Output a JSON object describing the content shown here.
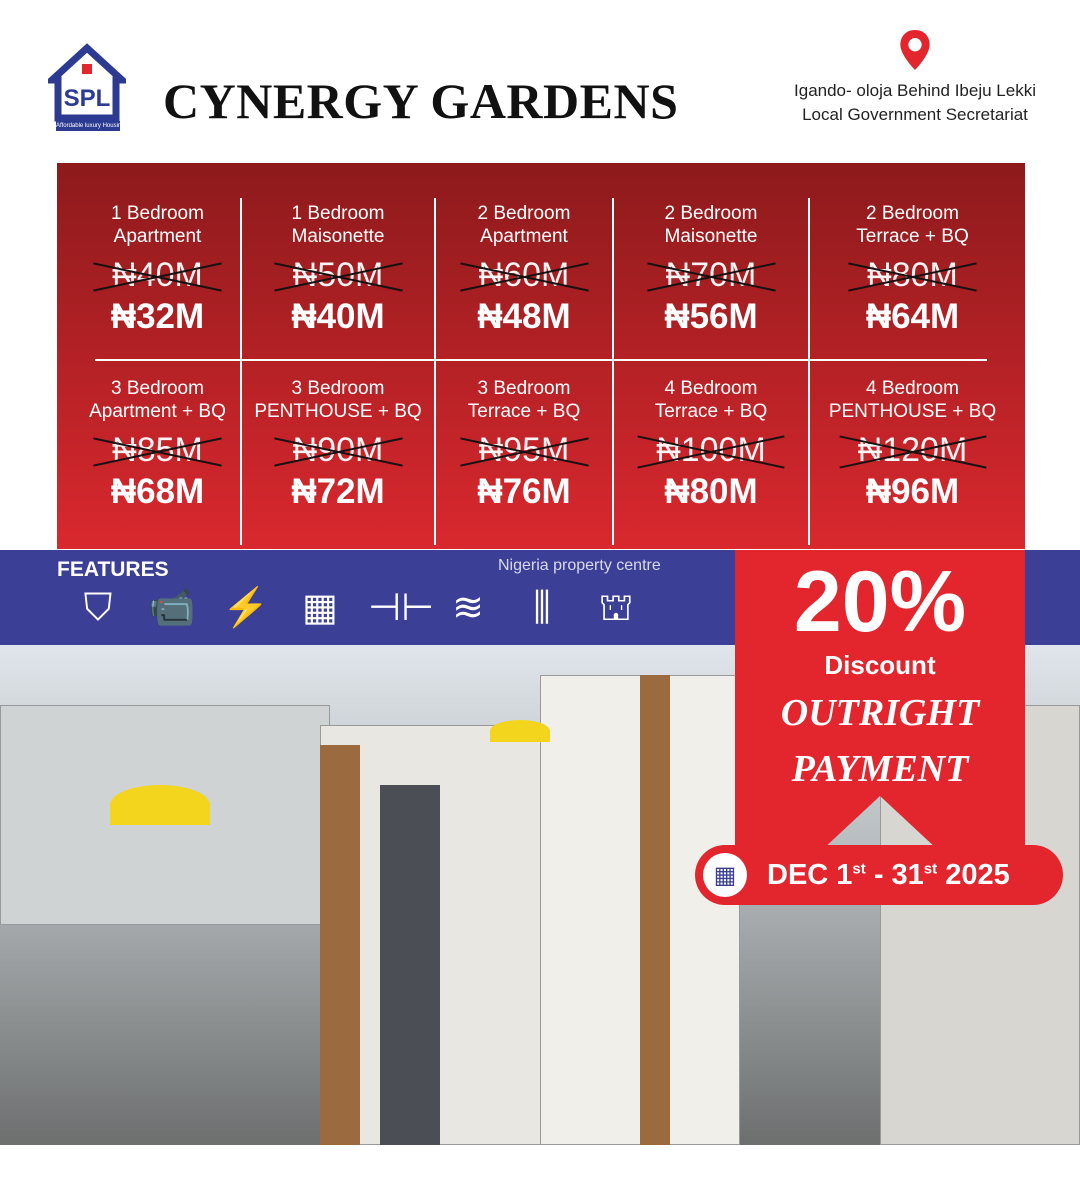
{
  "brand": {
    "logo_text": "SPL",
    "tagline": "Affordable luxury Housing!",
    "title": "CYNERGY GARDENS"
  },
  "location": {
    "icon": "map-pin-icon",
    "line1": "Igando- oloja Behind Ibeju Lekki",
    "line2": "Local Government Secretariat"
  },
  "units": [
    {
      "name1": "1 Bedroom",
      "name2": "Apartment",
      "old": "₦40M",
      "new": "₦32M"
    },
    {
      "name1": "1 Bedroom",
      "name2": "Maisonette",
      "old": "₦50M",
      "new": "₦40M"
    },
    {
      "name1": "2  Bedroom",
      "name2": "Apartment",
      "old": "₦60M",
      "new": "₦48M"
    },
    {
      "name1": "2 Bedroom",
      "name2": "Maisonette",
      "old": "₦70M",
      "new": "₦56M"
    },
    {
      "name1": "2 Bedroom",
      "name2": "Terrace + BQ",
      "old": "₦80M",
      "new": "₦64M"
    },
    {
      "name1": "3 Bedroom",
      "name2": "Apartment + BQ",
      "old": "₦85M",
      "new": "₦68M"
    },
    {
      "name1": "3 Bedroom",
      "name2": "PENTHOUSE + BQ",
      "old": "₦90M",
      "new": "₦72M"
    },
    {
      "name1": "3 Bedroom",
      "name2": "Terrace + BQ",
      "old": "₦95M",
      "new": "₦76M"
    },
    {
      "name1": "4 Bedroom",
      "name2": "Terrace + BQ",
      "old": "₦100M",
      "new": "₦80M"
    },
    {
      "name1": "4 Bedroom",
      "name2": "PENTHOUSE + BQ",
      "old": "₦120M",
      "new": "₦96M"
    }
  ],
  "features": {
    "label": "FEATURES",
    "icons": [
      "security-shield-icon",
      "cctv-camera-icon",
      "electricity-icon",
      "kitchen-icon",
      "gym-dumbbell-icon",
      "swimming-pool-icon",
      "fence-icon",
      "playground-icon"
    ]
  },
  "watermark": "Nigeria property centre",
  "promo": {
    "percent": "20%",
    "discount": "Discount",
    "line1": "OUTRIGHT",
    "line2": "PAYMENT"
  },
  "date": {
    "start": "DEC 1",
    "start_sup": "st",
    "sep": " - 31",
    "end_sup": "st",
    "year": " 2025"
  },
  "colors": {
    "red": "#e3262e",
    "dark_red": "#8d1a1c",
    "blue": "#3b3f96"
  }
}
